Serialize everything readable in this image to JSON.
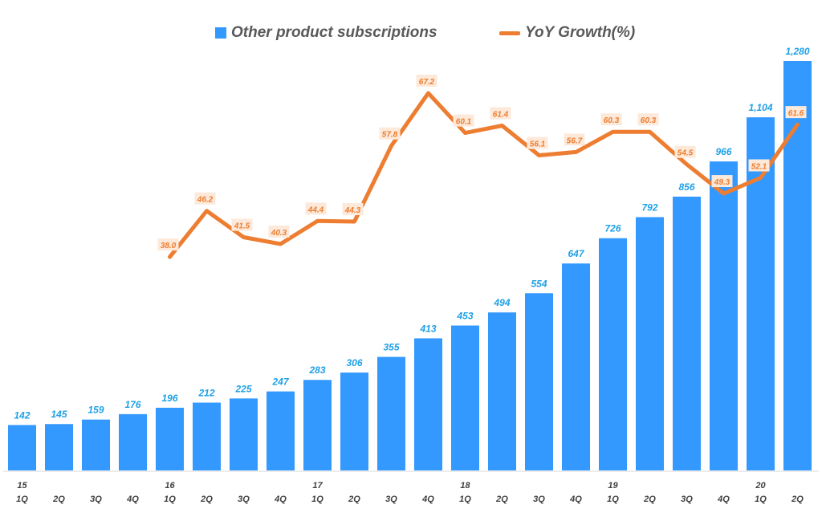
{
  "legend": {
    "bar_label": "Other product subscriptions",
    "line_label": "YoY Growth(%)"
  },
  "colors": {
    "bar": "#3399ff",
    "bar_label": "#1ea0e6",
    "line": "#ed7d31",
    "line_label_bg": "#fde9d9",
    "line_label_text": "#ed7d31",
    "axis_text": "#404040"
  },
  "chart_data": {
    "type": "bar",
    "categories": [
      {
        "year": "15",
        "quarter": "1Q"
      },
      {
        "year": "",
        "quarter": "2Q"
      },
      {
        "year": "",
        "quarter": "3Q"
      },
      {
        "year": "",
        "quarter": "4Q"
      },
      {
        "year": "16",
        "quarter": "1Q"
      },
      {
        "year": "",
        "quarter": "2Q"
      },
      {
        "year": "",
        "quarter": "3Q"
      },
      {
        "year": "",
        "quarter": "4Q"
      },
      {
        "year": "17",
        "quarter": "1Q"
      },
      {
        "year": "",
        "quarter": "2Q"
      },
      {
        "year": "",
        "quarter": "3Q"
      },
      {
        "year": "",
        "quarter": "4Q"
      },
      {
        "year": "18",
        "quarter": "1Q"
      },
      {
        "year": "",
        "quarter": "2Q"
      },
      {
        "year": "",
        "quarter": "3Q"
      },
      {
        "year": "",
        "quarter": "4Q"
      },
      {
        "year": "19",
        "quarter": "1Q"
      },
      {
        "year": "",
        "quarter": "2Q"
      },
      {
        "year": "",
        "quarter": "3Q"
      },
      {
        "year": "",
        "quarter": "4Q"
      },
      {
        "year": "20",
        "quarter": "1Q"
      },
      {
        "year": "",
        "quarter": "2Q"
      }
    ],
    "series": [
      {
        "name": "Other product subscriptions",
        "type": "bar",
        "values": [
          142,
          145,
          159,
          176,
          196,
          212,
          225,
          247,
          283,
          306,
          355,
          413,
          453,
          494,
          554,
          647,
          726,
          792,
          856,
          966,
          1104,
          1280
        ],
        "labels": [
          "142",
          "145",
          "159",
          "176",
          "196",
          "212",
          "225",
          "247",
          "283",
          "306",
          "355",
          "413",
          "453",
          "494",
          "554",
          "647",
          "726",
          "792",
          "856",
          "966",
          "1,104",
          "1,280"
        ]
      },
      {
        "name": "YoY Growth(%)",
        "type": "line",
        "values": [
          null,
          null,
          null,
          null,
          38.0,
          46.2,
          41.5,
          40.3,
          44.4,
          44.3,
          57.8,
          67.2,
          60.1,
          61.4,
          56.1,
          56.7,
          60.3,
          60.3,
          54.5,
          49.3,
          52.1,
          61.6
        ],
        "labels": [
          "",
          "",
          "",
          "",
          "38.0",
          "46.2",
          "41.5",
          "40.3",
          "44.4",
          "44.3",
          "57.8",
          "67.2",
          "60.1",
          "61.4",
          "56.1",
          "56.7",
          "60.3",
          "60.3",
          "54.5",
          "49.3",
          "52.1",
          "61.6"
        ]
      }
    ],
    "ylim_bar": [
      0,
      1300
    ],
    "ylim_line": [
      20,
      75
    ],
    "grid": false,
    "legend_position": "top-center"
  }
}
